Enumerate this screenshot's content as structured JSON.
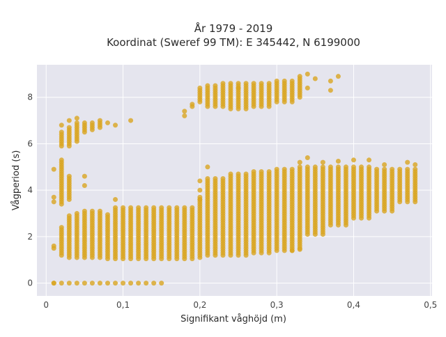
{
  "chart_data": {
    "type": "scatter",
    "title_line1": "År 1979 - 2019",
    "title_line2": "Koordinat (Sweref 99 TM): E 345442, N 6199000",
    "xlabel": "Signifikant våghöjd (m)",
    "ylabel": "Vågperiod (s)",
    "xlim": [
      -0.012,
      0.502
    ],
    "ylim": [
      -0.55,
      9.4
    ],
    "x_ticks": [
      0,
      0.1,
      0.2,
      0.3,
      0.4,
      0.5
    ],
    "x_tick_labels": [
      "0",
      "0,1",
      "0,2",
      "0,3",
      "0,4",
      "0,5"
    ],
    "y_ticks": [
      0,
      2,
      4,
      6,
      8
    ],
    "y_tick_labels": [
      "0",
      "2",
      "4",
      "6",
      "8"
    ],
    "grid": true,
    "legend": "none",
    "marker_color": "#DAA520",
    "plot_bg": "#E5E5EE",
    "bands": [
      {
        "x_from": 0.01,
        "x_to": 0.15,
        "step": 0.01,
        "y_min": 0,
        "y_max": 0
      },
      {
        "x_from": 0.01,
        "x_to": 0.01,
        "step": 0.01,
        "y_min": 1.5,
        "y_max": 1.65
      },
      {
        "x_from": 0.02,
        "x_to": 0.02,
        "step": 0.01,
        "y_min": 1.2,
        "y_max": 2.4
      },
      {
        "x_from": 0.02,
        "x_to": 0.02,
        "step": 0.01,
        "y_min": 3.4,
        "y_max": 5.3
      },
      {
        "x_from": 0.02,
        "x_to": 0.02,
        "step": 0.01,
        "y_min": 5.9,
        "y_max": 6.5
      },
      {
        "x_from": 0.03,
        "x_to": 0.03,
        "step": 0.01,
        "y_min": 1.1,
        "y_max": 2.9
      },
      {
        "x_from": 0.03,
        "x_to": 0.03,
        "step": 0.01,
        "y_min": 3.6,
        "y_max": 4.6
      },
      {
        "x_from": 0.03,
        "x_to": 0.03,
        "step": 0.01,
        "y_min": 5.9,
        "y_max": 6.7
      },
      {
        "x_from": 0.04,
        "x_to": 0.04,
        "step": 0.01,
        "y_min": 1.1,
        "y_max": 3.0
      },
      {
        "x_from": 0.04,
        "x_to": 0.04,
        "step": 0.01,
        "y_min": 6.1,
        "y_max": 6.9
      },
      {
        "x_from": 0.05,
        "x_to": 0.05,
        "step": 0.01,
        "y_min": 1.1,
        "y_max": 3.1
      },
      {
        "x_from": 0.05,
        "x_to": 0.05,
        "step": 0.01,
        "y_min": 6.5,
        "y_max": 6.9
      },
      {
        "x_from": 0.06,
        "x_to": 0.06,
        "step": 0.01,
        "y_min": 1.1,
        "y_max": 3.1
      },
      {
        "x_from": 0.06,
        "x_to": 0.06,
        "step": 0.01,
        "y_min": 6.6,
        "y_max": 6.9
      },
      {
        "x_from": 0.07,
        "x_to": 0.07,
        "step": 0.01,
        "y_min": 1.1,
        "y_max": 3.1
      },
      {
        "x_from": 0.07,
        "x_to": 0.07,
        "step": 0.01,
        "y_min": 6.7,
        "y_max": 7.0
      },
      {
        "x_from": 0.08,
        "x_to": 0.08,
        "step": 0.01,
        "y_min": 1.05,
        "y_max": 3.0
      },
      {
        "x_from": 0.09,
        "x_to": 0.19,
        "step": 0.01,
        "y_min": 1.05,
        "y_max": 3.3
      },
      {
        "x_from": 0.2,
        "x_to": 0.2,
        "step": 0.01,
        "y_min": 1.1,
        "y_max": 3.7
      },
      {
        "x_from": 0.2,
        "x_to": 0.2,
        "step": 0.01,
        "y_min": 7.8,
        "y_max": 8.4
      },
      {
        "x_from": 0.21,
        "x_to": 0.23,
        "step": 0.01,
        "y_min": 1.2,
        "y_max": 4.5
      },
      {
        "x_from": 0.21,
        "x_to": 0.23,
        "step": 0.01,
        "y_min": 7.6,
        "y_max": 8.5
      },
      {
        "x_from": 0.24,
        "x_to": 0.26,
        "step": 0.01,
        "y_min": 1.2,
        "y_max": 4.7
      },
      {
        "x_from": 0.24,
        "x_to": 0.26,
        "step": 0.01,
        "y_min": 7.5,
        "y_max": 8.6
      },
      {
        "x_from": 0.27,
        "x_to": 0.29,
        "step": 0.01,
        "y_min": 1.3,
        "y_max": 4.8
      },
      {
        "x_from": 0.27,
        "x_to": 0.29,
        "step": 0.01,
        "y_min": 7.6,
        "y_max": 8.6
      },
      {
        "x_from": 0.3,
        "x_to": 0.32,
        "step": 0.01,
        "y_min": 1.4,
        "y_max": 4.9
      },
      {
        "x_from": 0.3,
        "x_to": 0.32,
        "step": 0.01,
        "y_min": 7.8,
        "y_max": 8.7
      },
      {
        "x_from": 0.33,
        "x_to": 0.33,
        "step": 0.01,
        "y_min": 1.5,
        "y_max": 5.0
      },
      {
        "x_from": 0.33,
        "x_to": 0.33,
        "step": 0.01,
        "y_min": 8.0,
        "y_max": 8.9
      },
      {
        "x_from": 0.34,
        "x_to": 0.36,
        "step": 0.01,
        "y_min": 2.1,
        "y_max": 5.0
      },
      {
        "x_from": 0.37,
        "x_to": 0.39,
        "step": 0.01,
        "y_min": 2.5,
        "y_max": 5.0
      },
      {
        "x_from": 0.4,
        "x_to": 0.42,
        "step": 0.01,
        "y_min": 2.8,
        "y_max": 5.0
      },
      {
        "x_from": 0.43,
        "x_to": 0.45,
        "step": 0.01,
        "y_min": 3.1,
        "y_max": 4.9
      },
      {
        "x_from": 0.46,
        "x_to": 0.48,
        "step": 0.01,
        "y_min": 3.5,
        "y_max": 4.9
      }
    ],
    "isolated_points": [
      [
        0.01,
        0.0
      ],
      [
        0.01,
        4.9
      ],
      [
        0.01,
        3.5
      ],
      [
        0.01,
        3.7
      ],
      [
        0.02,
        6.8
      ],
      [
        0.03,
        7.0
      ],
      [
        0.04,
        7.1
      ],
      [
        0.05,
        4.6
      ],
      [
        0.05,
        4.2
      ],
      [
        0.08,
        6.9
      ],
      [
        0.09,
        6.8
      ],
      [
        0.11,
        7.0
      ],
      [
        0.09,
        3.6
      ],
      [
        0.18,
        7.2
      ],
      [
        0.18,
        7.4
      ],
      [
        0.19,
        7.6
      ],
      [
        0.19,
        7.7
      ],
      [
        0.2,
        4.4
      ],
      [
        0.2,
        4.0
      ],
      [
        0.2,
        3.6
      ],
      [
        0.21,
        5.0
      ],
      [
        0.23,
        8.6
      ],
      [
        0.25,
        8.4
      ],
      [
        0.32,
        1.4
      ],
      [
        0.33,
        1.45
      ],
      [
        0.34,
        9.0
      ],
      [
        0.34,
        8.4
      ],
      [
        0.35,
        8.8
      ],
      [
        0.37,
        8.7
      ],
      [
        0.37,
        8.3
      ],
      [
        0.38,
        8.9
      ],
      [
        0.33,
        5.2
      ],
      [
        0.34,
        5.4
      ],
      [
        0.36,
        5.2
      ],
      [
        0.38,
        5.25
      ],
      [
        0.4,
        5.3
      ],
      [
        0.42,
        5.3
      ],
      [
        0.44,
        5.1
      ],
      [
        0.47,
        5.2
      ],
      [
        0.48,
        5.1
      ]
    ]
  }
}
